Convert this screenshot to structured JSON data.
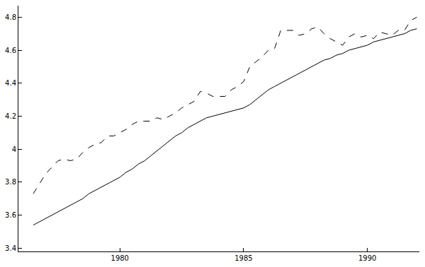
{
  "chart_data": {
    "type": "line",
    "x": [
      1976.5,
      1976.75,
      1977.0,
      1977.25,
      1977.5,
      1977.75,
      1978.0,
      1978.25,
      1978.5,
      1978.75,
      1979.0,
      1979.25,
      1979.5,
      1979.75,
      1980.0,
      1980.25,
      1980.5,
      1980.75,
      1981.0,
      1981.25,
      1981.5,
      1981.75,
      1982.0,
      1982.25,
      1982.5,
      1982.75,
      1983.0,
      1983.25,
      1983.5,
      1983.75,
      1984.0,
      1984.25,
      1984.5,
      1984.75,
      1985.0,
      1985.25,
      1985.5,
      1985.75,
      1986.0,
      1986.25,
      1986.5,
      1986.75,
      1987.0,
      1987.25,
      1987.5,
      1987.75,
      1988.0,
      1988.25,
      1988.5,
      1988.75,
      1989.0,
      1989.25,
      1989.5,
      1989.75,
      1990.0,
      1990.25,
      1990.5,
      1990.75,
      1991.0,
      1991.25,
      1991.5,
      1991.75,
      1992.0
    ],
    "series": [
      {
        "color": "#000000",
        "line_style": "solid",
        "values": [
          3.54,
          3.56,
          3.58,
          3.6,
          3.62,
          3.64,
          3.66,
          3.68,
          3.7,
          3.73,
          3.75,
          3.77,
          3.79,
          3.81,
          3.83,
          3.86,
          3.88,
          3.91,
          3.93,
          3.96,
          3.99,
          4.02,
          4.05,
          4.08,
          4.1,
          4.13,
          4.15,
          4.17,
          4.19,
          4.2,
          4.21,
          4.22,
          4.23,
          4.24,
          4.25,
          4.27,
          4.3,
          4.33,
          4.36,
          4.38,
          4.4,
          4.42,
          4.44,
          4.46,
          4.48,
          4.5,
          4.52,
          4.54,
          4.55,
          4.57,
          4.58,
          4.6,
          4.61,
          4.62,
          4.63,
          4.65,
          4.66,
          4.67,
          4.68,
          4.69,
          4.7,
          4.72,
          4.73
        ]
      },
      {
        "color": "#000000",
        "line_style": "dash",
        "values": [
          3.73,
          3.79,
          3.85,
          3.89,
          3.93,
          3.94,
          3.93,
          3.94,
          3.98,
          4.01,
          4.03,
          4.04,
          4.08,
          4.08,
          4.1,
          4.12,
          4.15,
          4.17,
          4.17,
          4.17,
          4.19,
          4.18,
          4.2,
          4.22,
          4.25,
          4.27,
          4.29,
          4.35,
          4.34,
          4.32,
          4.32,
          4.32,
          4.36,
          4.38,
          4.41,
          4.5,
          4.53,
          4.56,
          4.6,
          4.61,
          4.72,
          4.72,
          4.72,
          4.69,
          4.7,
          4.73,
          4.74,
          4.7,
          4.67,
          4.65,
          4.63,
          4.68,
          4.7,
          4.68,
          4.69,
          4.67,
          4.71,
          4.7,
          4.69,
          4.72,
          4.72,
          4.78,
          4.8
        ]
      }
    ],
    "xlim": [
      1975.9,
      1992.1
    ],
    "xticks": [
      1980,
      1985,
      1990
    ],
    "ylim": [
      3.38,
      4.87
    ],
    "yticks": [
      3.4,
      3.6,
      3.8,
      4,
      4.2,
      4.4,
      4.6,
      4.8
    ],
    "grid": false
  }
}
